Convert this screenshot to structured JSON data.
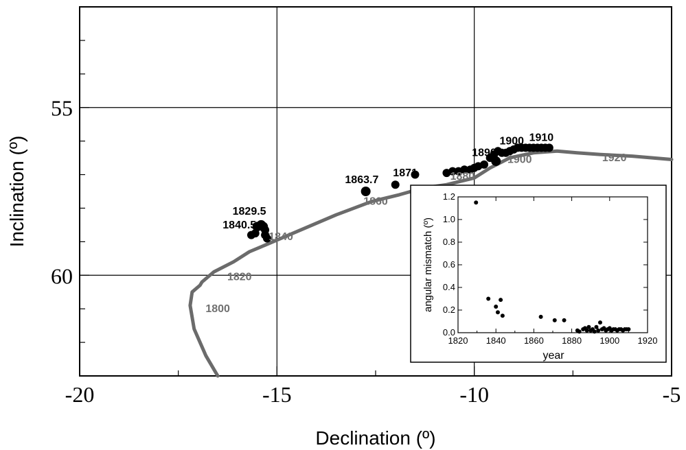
{
  "chart_data": [
    {
      "type": "line",
      "xlabel": "Declination (º)",
      "ylabel": "Inclination (º)",
      "xlim": [
        -20,
        -5
      ],
      "ylim": [
        63,
        52
      ],
      "y_axis_inverted": true,
      "x_ticks": [
        -20,
        -15,
        -10,
        -5
      ],
      "x_tick_labels": [
        "-20",
        "-15",
        "-10",
        "-5"
      ],
      "y_ticks": [
        55,
        60
      ],
      "y_tick_labels": [
        "55",
        "60"
      ],
      "grid": true,
      "colors": {
        "model_curve": "#6b6b6b",
        "observations": "#000000",
        "year_label_curve": "#707070"
      },
      "series": [
        {
          "role": "model_curve",
          "x": [
            -16.5,
            -16.8,
            -17.1,
            -17.2,
            -17.15,
            -16.95,
            -16.9,
            -16.6,
            -16.1,
            -15.7,
            -15.3,
            -14.5,
            -13.5,
            -12.6,
            -11.9,
            -11.3,
            -10.7,
            -10.0,
            -9.6,
            -9.1,
            -8.5,
            -7.9,
            -7.4,
            -6.8,
            -6.0,
            -5.0
          ],
          "y": [
            63.0,
            62.4,
            61.6,
            60.9,
            60.5,
            60.3,
            60.2,
            59.9,
            59.6,
            59.3,
            59.1,
            58.7,
            58.2,
            57.8,
            57.6,
            57.4,
            57.3,
            57.1,
            56.8,
            56.5,
            56.35,
            56.3,
            56.35,
            56.4,
            56.45,
            56.55
          ]
        },
        {
          "role": "observations",
          "x": [
            -15.65,
            -15.55,
            -15.5,
            -15.4,
            -15.35,
            -15.3,
            -15.25,
            -15.3,
            -12.75,
            -12.0,
            -11.5,
            -10.7,
            -10.55,
            -10.4,
            -10.25,
            -10.1,
            -10.0,
            -9.9,
            -9.75,
            -9.6,
            -9.5,
            -9.4,
            -9.3,
            -9.2,
            -9.1,
            -9.0,
            -8.9,
            -8.8,
            -8.7,
            -8.6,
            -8.5,
            -8.4,
            -8.3,
            -8.2,
            -8.1,
            -9.45
          ],
          "y": [
            58.8,
            58.75,
            58.55,
            58.5,
            58.55,
            58.65,
            58.9,
            58.8,
            57.5,
            57.3,
            57.0,
            56.95,
            56.9,
            56.9,
            56.85,
            56.85,
            56.8,
            56.75,
            56.7,
            56.5,
            56.4,
            56.3,
            56.35,
            56.35,
            56.3,
            56.25,
            56.2,
            56.2,
            56.2,
            56.2,
            56.2,
            56.2,
            56.2,
            56.2,
            56.2,
            56.6
          ],
          "marker_sizes": [
            6,
            6,
            7,
            7,
            7,
            6,
            6,
            6,
            7,
            6,
            6,
            6,
            6,
            6,
            6,
            6,
            6,
            6,
            6,
            6,
            6,
            6,
            6,
            6,
            6,
            6,
            6,
            6,
            6,
            6,
            6,
            6,
            6,
            6,
            6,
            7
          ]
        }
      ],
      "annotations_observation_years": [
        {
          "text": "1829.5",
          "x": -15.7,
          "y": 58.2
        },
        {
          "text": "1840.5",
          "x": -15.95,
          "y": 58.6
        },
        {
          "text": "1863.7",
          "x": -12.85,
          "y": 57.25
        },
        {
          "text": "1871",
          "x": -11.75,
          "y": 57.05
        },
        {
          "text": "1890",
          "x": -9.75,
          "y": 56.45
        },
        {
          "text": "1900",
          "x": -9.05,
          "y": 56.1
        },
        {
          "text": "1910",
          "x": -8.3,
          "y": 56.0
        }
      ],
      "annotations_curve_years": [
        {
          "text": "1800",
          "x": -16.5,
          "y": 61.1
        },
        {
          "text": "1820",
          "x": -15.95,
          "y": 60.15
        },
        {
          "text": "1840",
          "x": -14.9,
          "y": 58.95
        },
        {
          "text": "1860",
          "x": -12.5,
          "y": 57.9
        },
        {
          "text": "1880",
          "x": -10.3,
          "y": 57.15
        },
        {
          "text": "1900",
          "x": -8.85,
          "y": 56.65
        },
        {
          "text": "1920",
          "x": -6.45,
          "y": 56.6
        }
      ]
    },
    {
      "type": "scatter",
      "xlabel": "year",
      "ylabel": "angular mismatch (º)",
      "xlim": [
        1820,
        1920
      ],
      "ylim": [
        0,
        1.2
      ],
      "x_ticks": [
        1820,
        1840,
        1860,
        1880,
        1900,
        1920
      ],
      "x_tick_labels": [
        "1820",
        "1840",
        "1860",
        "1880",
        "1900",
        "1920"
      ],
      "y_ticks": [
        0.0,
        0.2,
        0.4,
        0.6,
        0.8,
        1.0,
        1.2
      ],
      "y_tick_labels": [
        "0.0",
        "0.2",
        "0.4",
        "0.6",
        "0.8",
        "1.0",
        "1.2"
      ],
      "grid": false,
      "series": [
        {
          "x": [
            1829.5,
            1836,
            1840,
            1841,
            1842.5,
            1843.5,
            1863.7,
            1871,
            1876,
            1883,
            1884,
            1886,
            1887,
            1888,
            1889,
            1890,
            1891,
            1892,
            1893,
            1894,
            1895,
            1896,
            1897,
            1898,
            1899,
            1900,
            1901,
            1902,
            1903,
            1904,
            1905,
            1906,
            1907,
            1908,
            1909,
            1910
          ],
          "y": [
            1.15,
            0.3,
            0.23,
            0.18,
            0.29,
            0.15,
            0.14,
            0.11,
            0.11,
            0.02,
            0.01,
            0.03,
            0.04,
            0.02,
            0.05,
            0.02,
            0.03,
            0.01,
            0.05,
            0.02,
            0.09,
            0.03,
            0.04,
            0.02,
            0.03,
            0.04,
            0.02,
            0.03,
            0.03,
            0.02,
            0.03,
            0.03,
            0.02,
            0.03,
            0.03,
            0.03
          ]
        }
      ]
    }
  ]
}
